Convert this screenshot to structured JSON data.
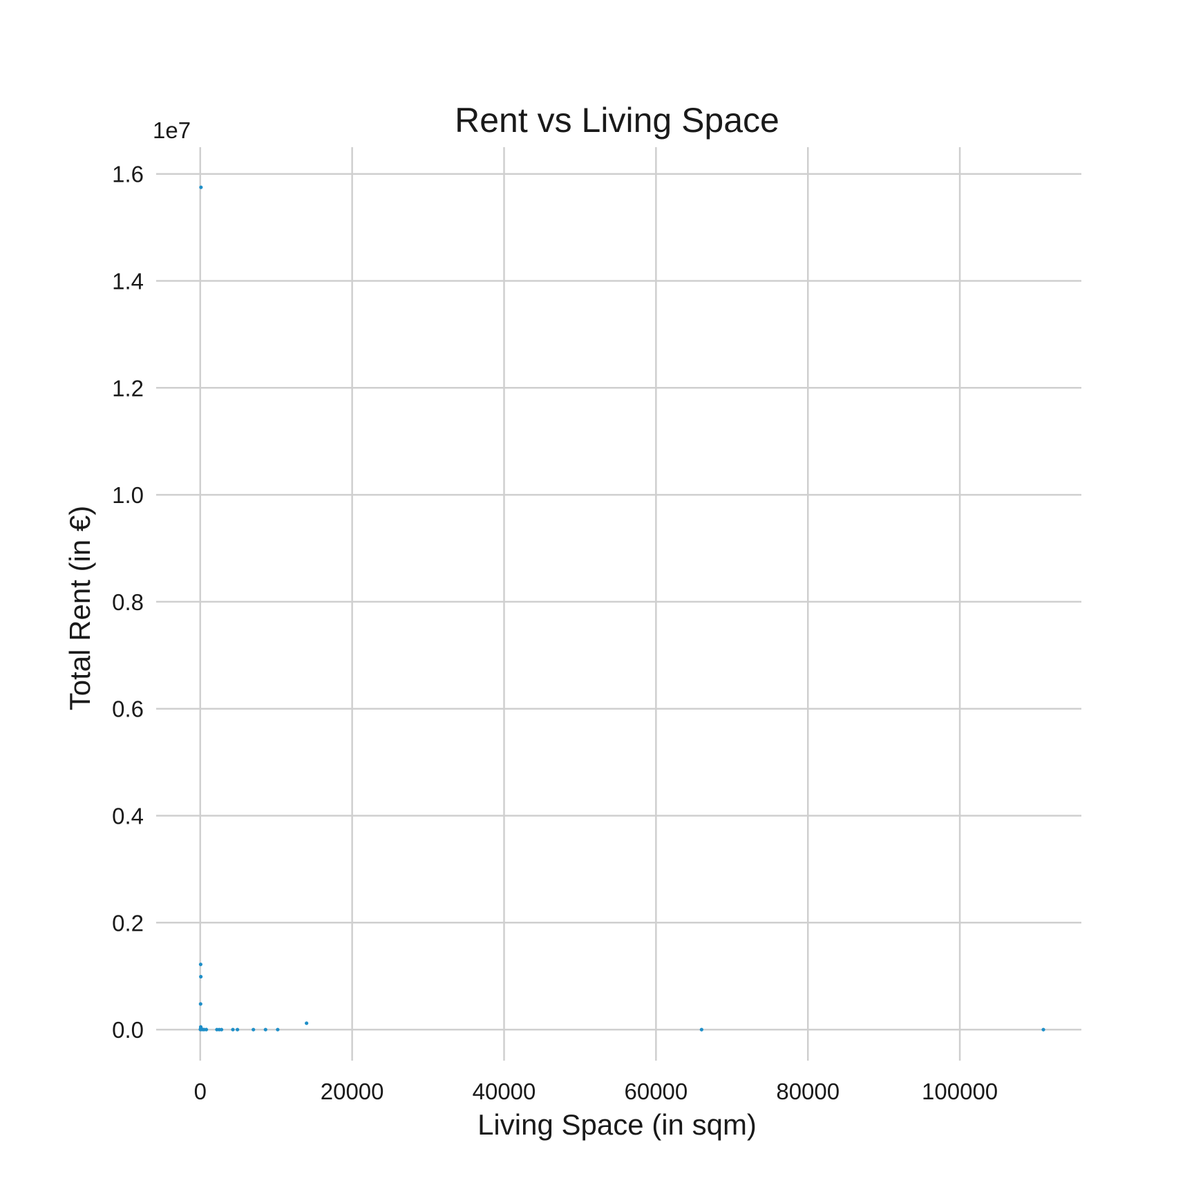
{
  "chart_data": {
    "type": "scatter",
    "title": "Rent vs Living Space",
    "xlabel": "Living Space (in sqm)",
    "ylabel": "Total Rent (in €)",
    "y_offset_label": "1e7",
    "xlim": [
      -5800,
      116000
    ],
    "ylim": [
      -0.058,
      1.65
    ],
    "y_scale_multiplier": 10000000,
    "x_ticks": [
      0,
      20000,
      40000,
      60000,
      80000,
      100000
    ],
    "x_tick_labels": [
      "0",
      "20000",
      "40000",
      "60000",
      "80000",
      "100000"
    ],
    "y_ticks": [
      0.0,
      0.2,
      0.4,
      0.6,
      0.8,
      1.0,
      1.2,
      1.4,
      1.6
    ],
    "y_tick_labels": [
      "0.0",
      "0.2",
      "0.4",
      "0.6",
      "0.8",
      "1.0",
      "1.2",
      "1.4",
      "1.6"
    ],
    "grid": true,
    "point_color": "#1f8fc8",
    "series": [
      {
        "x": [
          100,
          60,
          80,
          50,
          70,
          90,
          120,
          150,
          200,
          40,
          30,
          300,
          500,
          800,
          2200,
          2500,
          2800,
          4300,
          4900,
          7000,
          8600,
          10200,
          14000,
          66000,
          111000,
          60,
          50
        ],
        "y": [
          1.575,
          0.122,
          0.099,
          0.048,
          0.005,
          0.003,
          0.002,
          0.001,
          0.0005,
          0.0008,
          0.0003,
          0.0002,
          0.0001,
          0.0001,
          5e-05,
          5e-05,
          5e-05,
          5e-05,
          5e-05,
          5e-05,
          5e-05,
          5e-05,
          0.012,
          2e-05,
          2e-05,
          0.0012,
          0.0004
        ]
      }
    ]
  }
}
